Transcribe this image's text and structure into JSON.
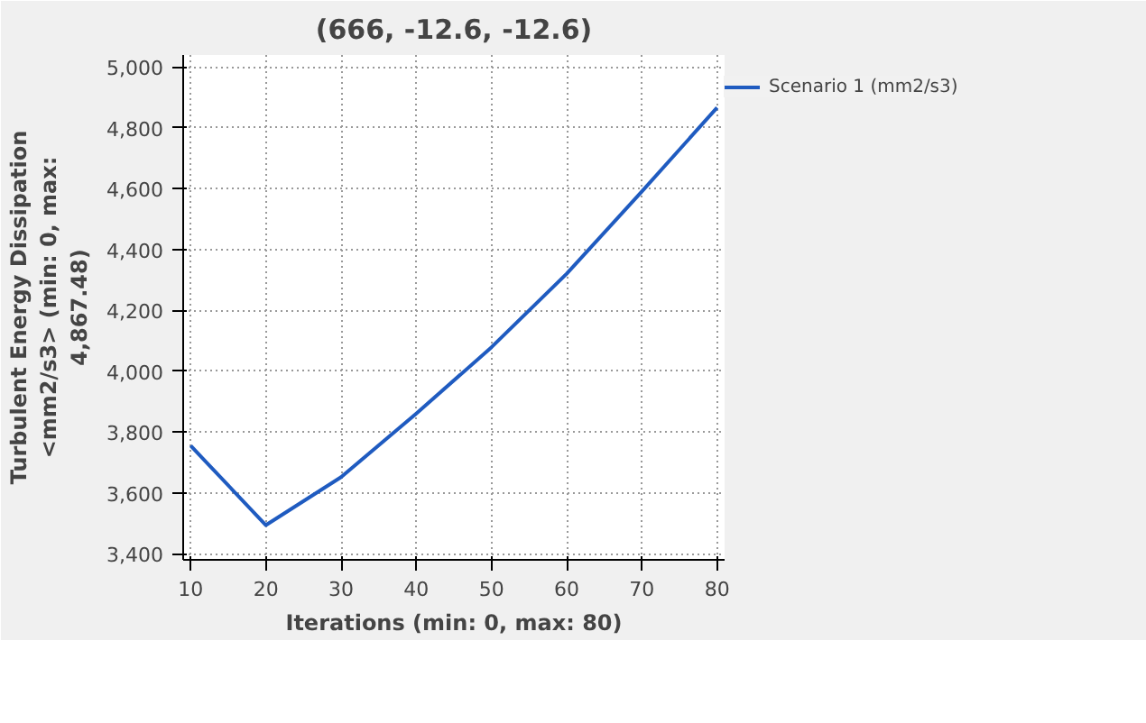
{
  "chart_data": {
    "type": "line",
    "title": "(666, -12.6, -12.6)",
    "xlabel": "Iterations (min: 0, max: 80)",
    "ylabel": "Turbulent Energy Dissipation <mm2/s3> (min: 0, max: 4,867.48)",
    "x": [
      10,
      20,
      30,
      40,
      50,
      60,
      70,
      80
    ],
    "series": [
      {
        "name": "Scenario 1 (mm2/s3)",
        "color": "#1f5bc0",
        "values": [
          3755,
          3494,
          3652,
          3861,
          4079,
          4321,
          4591,
          4867
        ]
      }
    ],
    "xlim": [
      9,
      81
    ],
    "ylim": [
      3380,
      5040
    ],
    "xticks": [
      10,
      20,
      30,
      40,
      50,
      60,
      70,
      80
    ],
    "yticks": [
      {
        "value": 3400,
        "label": "3,400"
      },
      {
        "value": 3600,
        "label": "3,600"
      },
      {
        "value": 3800,
        "label": "3,800"
      },
      {
        "value": 4000,
        "label": "4,000"
      },
      {
        "value": 4200,
        "label": "4,200"
      },
      {
        "value": 4400,
        "label": "4,400"
      },
      {
        "value": 4600,
        "label": "4,600"
      },
      {
        "value": 4800,
        "label": "4,800"
      },
      {
        "value": 5000,
        "label": "5,000"
      }
    ],
    "grid": true,
    "legend": "top right",
    "line_style": "solid"
  }
}
